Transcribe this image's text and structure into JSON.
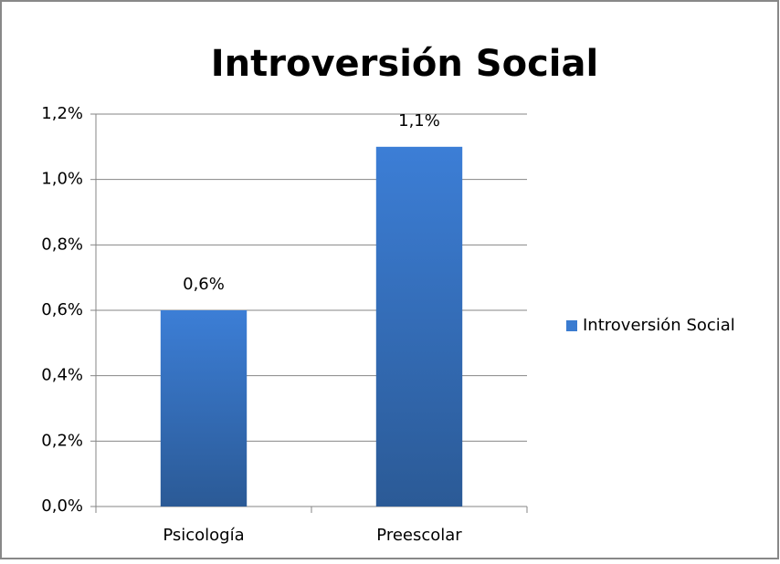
{
  "chart_data": {
    "type": "bar",
    "title": "Introversión Social",
    "categories": [
      "Psicología",
      "Preescolar"
    ],
    "series": [
      {
        "name": "Introversión Social",
        "color": "#3a7bd0",
        "values": [
          0.6,
          1.1
        ],
        "value_labels": [
          "0,6%",
          "1,1%"
        ]
      }
    ],
    "ylim": [
      0,
      1.2
    ],
    "yticks": [
      {
        "value": 0,
        "label": "0,0%"
      },
      {
        "value": 0.2,
        "label": "0,2%"
      },
      {
        "value": 0.4,
        "label": "0,4%"
      },
      {
        "value": 0.6,
        "label": "0,6%"
      },
      {
        "value": 0.8,
        "label": "0,8%"
      },
      {
        "value": 1.0,
        "label": "1,0%"
      },
      {
        "value": 1.2,
        "label": "1,2%"
      }
    ],
    "grid": true,
    "legend": "right"
  }
}
